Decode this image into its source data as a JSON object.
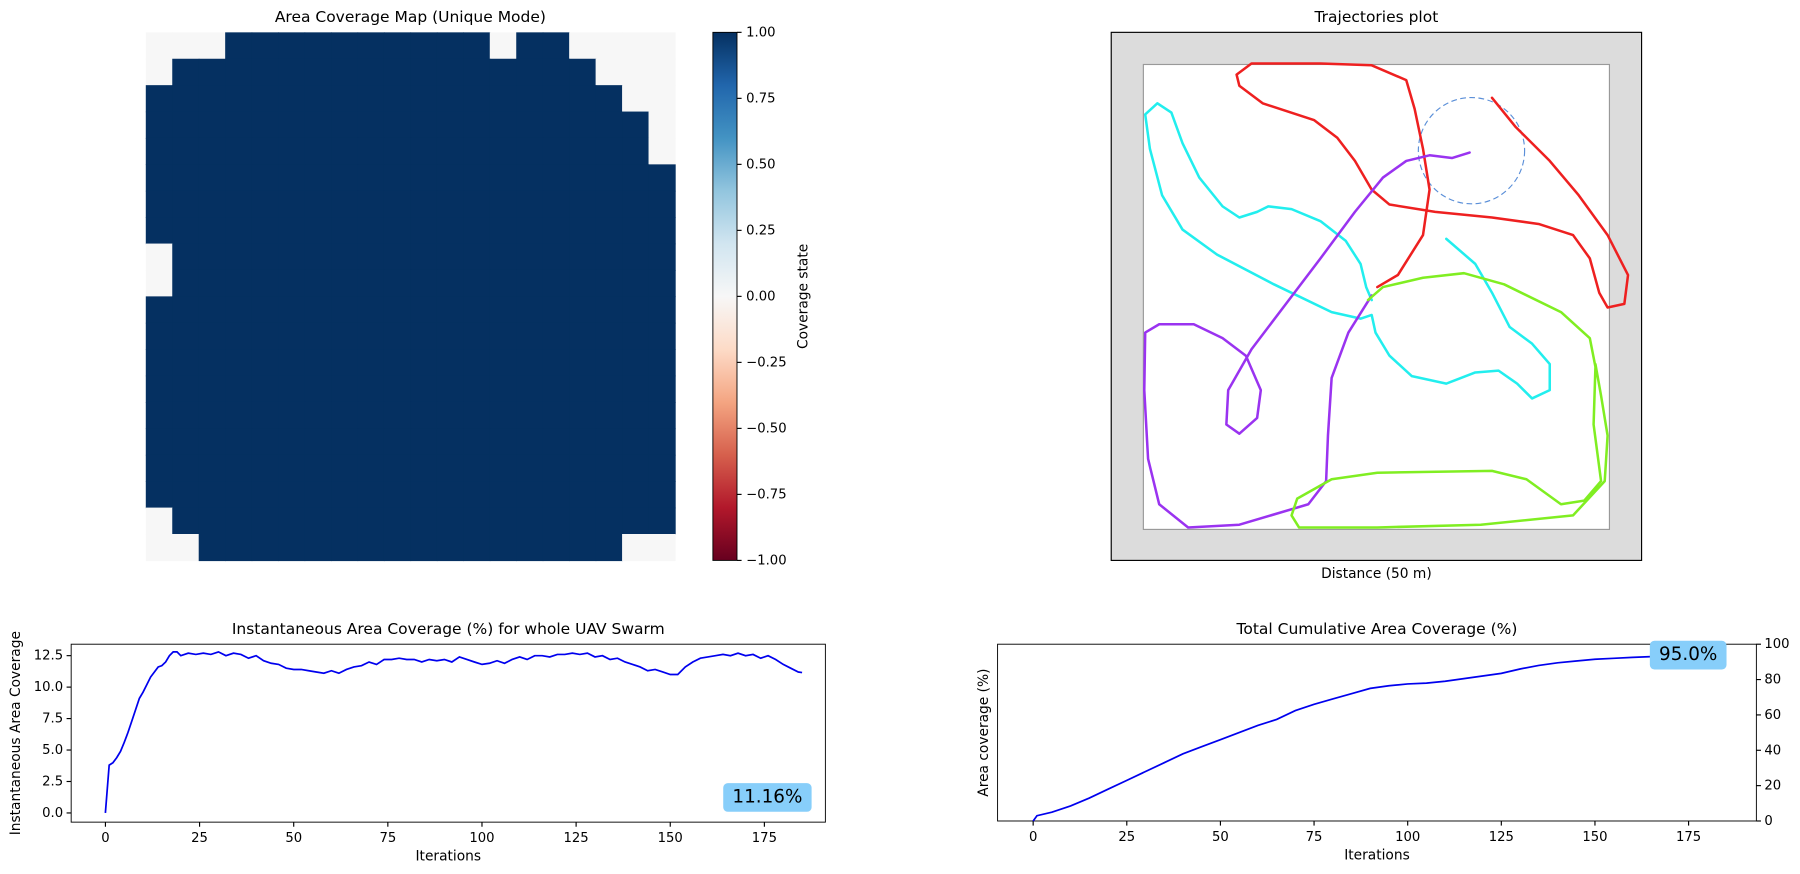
{
  "chart_data": [
    {
      "type": "heatmap",
      "title": "Area Coverage Map (Unique Mode)",
      "values": [
        [
          0,
          0,
          0,
          1,
          1,
          1,
          1,
          1,
          1,
          1,
          1,
          1,
          1,
          0,
          1,
          1,
          0,
          0,
          0,
          0
        ],
        [
          0,
          1,
          1,
          1,
          1,
          1,
          1,
          1,
          1,
          1,
          1,
          1,
          1,
          1,
          1,
          1,
          1,
          0,
          0,
          0
        ],
        [
          1,
          1,
          1,
          1,
          1,
          1,
          1,
          1,
          1,
          1,
          1,
          1,
          1,
          1,
          1,
          1,
          1,
          1,
          0,
          0
        ],
        [
          1,
          1,
          1,
          1,
          1,
          1,
          1,
          1,
          1,
          1,
          1,
          1,
          1,
          1,
          1,
          1,
          1,
          1,
          1,
          0
        ],
        [
          1,
          1,
          1,
          1,
          1,
          1,
          1,
          1,
          1,
          1,
          1,
          1,
          1,
          1,
          1,
          1,
          1,
          1,
          1,
          0
        ],
        [
          1,
          1,
          1,
          1,
          1,
          1,
          1,
          1,
          1,
          1,
          1,
          1,
          1,
          1,
          1,
          1,
          1,
          1,
          1,
          1
        ],
        [
          1,
          1,
          1,
          1,
          1,
          1,
          1,
          1,
          1,
          1,
          1,
          1,
          1,
          1,
          1,
          1,
          1,
          1,
          1,
          1
        ],
        [
          1,
          1,
          1,
          1,
          1,
          1,
          1,
          1,
          1,
          1,
          1,
          1,
          1,
          1,
          1,
          1,
          1,
          1,
          1,
          1
        ],
        [
          0,
          1,
          1,
          1,
          1,
          1,
          1,
          1,
          1,
          1,
          1,
          1,
          1,
          1,
          1,
          1,
          1,
          1,
          1,
          1
        ],
        [
          0,
          1,
          1,
          1,
          1,
          1,
          1,
          1,
          1,
          1,
          1,
          1,
          1,
          1,
          1,
          1,
          1,
          1,
          1,
          1
        ],
        [
          1,
          1,
          1,
          1,
          1,
          1,
          1,
          1,
          1,
          1,
          1,
          1,
          1,
          1,
          1,
          1,
          1,
          1,
          1,
          1
        ],
        [
          1,
          1,
          1,
          1,
          1,
          1,
          1,
          1,
          1,
          1,
          1,
          1,
          1,
          1,
          1,
          1,
          1,
          1,
          1,
          1
        ],
        [
          1,
          1,
          1,
          1,
          1,
          1,
          1,
          1,
          1,
          1,
          1,
          1,
          1,
          1,
          1,
          1,
          1,
          1,
          1,
          1
        ],
        [
          1,
          1,
          1,
          1,
          1,
          1,
          1,
          1,
          1,
          1,
          1,
          1,
          1,
          1,
          1,
          1,
          1,
          1,
          1,
          1
        ],
        [
          1,
          1,
          1,
          1,
          1,
          1,
          1,
          1,
          1,
          1,
          1,
          1,
          1,
          1,
          1,
          1,
          1,
          1,
          1,
          1
        ],
        [
          1,
          1,
          1,
          1,
          1,
          1,
          1,
          1,
          1,
          1,
          1,
          1,
          1,
          1,
          1,
          1,
          1,
          1,
          1,
          1
        ],
        [
          1,
          1,
          1,
          1,
          1,
          1,
          1,
          1,
          1,
          1,
          1,
          1,
          1,
          1,
          1,
          1,
          1,
          1,
          1,
          1
        ],
        [
          1,
          1,
          1,
          1,
          1,
          1,
          1,
          1,
          1,
          1,
          1,
          1,
          1,
          1,
          1,
          1,
          1,
          1,
          1,
          1
        ],
        [
          0,
          1,
          1,
          1,
          1,
          1,
          1,
          1,
          1,
          1,
          1,
          1,
          1,
          1,
          1,
          1,
          1,
          1,
          1,
          1
        ],
        [
          0,
          0,
          1,
          1,
          1,
          1,
          1,
          1,
          1,
          1,
          1,
          1,
          1,
          1,
          1,
          1,
          1,
          1,
          0,
          0
        ]
      ],
      "clim": [
        -1,
        1
      ],
      "colormap": "RdBu",
      "colorbar_label": "Coverage state",
      "colorbar_ticks": [
        {
          "value": 1,
          "label": "1.00"
        },
        0.75,
        {
          "value": 0.5,
          "label": "0.50"
        },
        0.25,
        {
          "value": 0,
          "label": "0.00"
        },
        {
          "value": -0.25,
          "label": "−0.25"
        },
        {
          "value": -0.5,
          "label": "−0.50"
        },
        {
          "value": -0.75,
          "label": "−0.75"
        },
        {
          "value": -1,
          "label": "−1.00"
        }
      ]
    },
    {
      "type": "trajectories",
      "title": "Trajectories plot",
      "x_label": "Distance  (50 m)",
      "xlim": [
        -3.45,
        53.45
      ],
      "ylim": [
        -3.45,
        53.45
      ],
      "sensing_circle": {
        "x": 35.2,
        "y": 40.7,
        "r": 5.7,
        "color": "#5b8fd8"
      },
      "series": [
        {
          "color": "#ee2020",
          "x": [
            25.1,
            27.3,
            30.0,
            30.7,
            30.0,
            29.1,
            28.2,
            24.5,
            19.0,
            11.6,
            10.0,
            10.3,
            12.8,
            18.3,
            20.8,
            22.7,
            24.5,
            26.4,
            31.3,
            37.4,
            42.4,
            46.1,
            47.9,
            48.9,
            49.8,
            51.6,
            52.0,
            49.8,
            46.7,
            43.6,
            39.9,
            37.4
          ],
          "y": [
            26.0,
            27.3,
            31.6,
            36.5,
            40.9,
            45.2,
            48.3,
            49.9,
            50.1,
            50.1,
            48.9,
            47.7,
            45.8,
            44.0,
            42.1,
            39.6,
            36.5,
            34.9,
            34.1,
            33.5,
            32.8,
            31.6,
            29.1,
            25.4,
            23.8,
            24.2,
            27.3,
            31.6,
            35.9,
            39.6,
            43.3,
            46.4
          ]
        },
        {
          "color": "#22eeee",
          "x": [
            32.5,
            35.6,
            37.4,
            39.3,
            41.7,
            43.6,
            43.6,
            41.7,
            40.1,
            38.1,
            35.6,
            32.5,
            28.8,
            26.4,
            24.9,
            24.5,
            23.3,
            20.2,
            14.0,
            7.9,
            4.2,
            2.0,
            0.7,
            0.2,
            1.5,
            3.0,
            4.2,
            6.0,
            8.5,
            10.3,
            12.2,
            13.4,
            15.9,
            19.0,
            21.7,
            23.3,
            23.9,
            24.5
          ],
          "y": [
            31.2,
            28.5,
            25.4,
            21.7,
            19.9,
            17.7,
            14.9,
            14.0,
            15.6,
            17.0,
            16.8,
            15.6,
            16.4,
            18.6,
            21.1,
            23.0,
            22.6,
            23.3,
            26.3,
            29.5,
            32.2,
            35.9,
            40.9,
            44.6,
            45.8,
            44.8,
            41.5,
            37.8,
            34.7,
            33.5,
            34.1,
            34.7,
            34.4,
            33.1,
            31.0,
            28.5,
            26.0,
            24.6
          ]
        },
        {
          "color": "#9a33f0",
          "x": [
            35.0,
            33.1,
            30.7,
            28.2,
            25.7,
            22.7,
            19.0,
            15.3,
            11.6,
            9.1,
            8.9,
            10.3,
            12.2,
            12.6,
            11.0,
            8.5,
            5.4,
            1.7,
            0.2,
            0.1,
            0.5,
            1.7,
            4.8,
            10.3,
            17.7,
            19.6,
            19.8,
            20.2,
            22.0,
            24.5
          ],
          "y": [
            40.5,
            39.9,
            40.2,
            39.6,
            37.8,
            34.1,
            29.1,
            24.2,
            19.3,
            14.9,
            11.2,
            10.2,
            11.9,
            14.9,
            18.6,
            20.5,
            22.0,
            22.0,
            21.1,
            14.9,
            7.5,
            2.6,
            0.1,
            0.4,
            2.6,
            5.1,
            10.0,
            16.2,
            21.1,
            25.1
          ]
        },
        {
          "color": "#80ee22",
          "x": [
            24.1,
            25.7,
            30.0,
            34.4,
            38.7,
            44.8,
            47.9,
            48.5,
            48.3,
            49.1,
            47.3,
            44.8,
            41.1,
            37.4,
            25.1,
            20.2,
            16.5,
            15.9,
            16.7,
            25.1,
            36.2,
            46.1,
            49.5,
            49.8,
            49.1,
            48.5
          ],
          "y": [
            24.6,
            26.0,
            27.0,
            27.5,
            26.3,
            23.3,
            20.5,
            17.4,
            11.2,
            5.1,
            3.0,
            2.6,
            5.3,
            6.2,
            6.0,
            5.3,
            3.2,
            1.4,
            0.1,
            0.1,
            0.4,
            1.4,
            5.1,
            10.0,
            14.3,
            17.7
          ]
        }
      ]
    },
    {
      "type": "line",
      "title": "Instantaneous Area Coverage (%) for whole UAV Swarm",
      "x_label": "Iterations",
      "y_label": "Instantaneous Area Coverage",
      "color": "#0000ee",
      "ytick_side": "left",
      "annotation": "11.16%",
      "annotation_loc": "lower right",
      "annotation_color": "#87cefa",
      "xlim": [
        -9.1,
        191.2
      ],
      "ylim": [
        -0.73,
        13.41
      ],
      "xticks": [
        0,
        25,
        50,
        75,
        100,
        125,
        150,
        175
      ],
      "yticks": [
        {
          "value": 0,
          "label": "0.0"
        },
        2.5,
        {
          "value": 5,
          "label": "5.0"
        },
        7.5,
        {
          "value": 10,
          "label": "10.0"
        },
        12.5
      ],
      "x": [
        0,
        1,
        2,
        3,
        4,
        5,
        6,
        7,
        8,
        9,
        10,
        11,
        12,
        13,
        14,
        15,
        16,
        17,
        18,
        19,
        20,
        22,
        24,
        26,
        28,
        30,
        32,
        34,
        36,
        38,
        40,
        42,
        44,
        46,
        48,
        50,
        52,
        54,
        56,
        58,
        60,
        62,
        64,
        66,
        68,
        70,
        72,
        74,
        76,
        78,
        80,
        82,
        84,
        86,
        88,
        90,
        92,
        94,
        96,
        98,
        100,
        102,
        104,
        106,
        108,
        110,
        112,
        114,
        116,
        118,
        120,
        122,
        124,
        126,
        128,
        130,
        132,
        134,
        136,
        138,
        140,
        142,
        144,
        146,
        148,
        150,
        152,
        154,
        156,
        158,
        160,
        162,
        164,
        166,
        168,
        170,
        172,
        174,
        176,
        178,
        180,
        182,
        184,
        185
      ],
      "values": [
        0,
        3.8,
        4.0,
        4.4,
        4.9,
        5.6,
        6.4,
        7.3,
        8.2,
        9.1,
        9.6,
        10.2,
        10.8,
        11.2,
        11.6,
        11.7,
        12.0,
        12.5,
        12.8,
        12.8,
        12.5,
        12.7,
        12.6,
        12.7,
        12.6,
        12.8,
        12.5,
        12.7,
        12.6,
        12.3,
        12.5,
        12.1,
        11.9,
        11.8,
        11.5,
        11.4,
        11.4,
        11.3,
        11.2,
        11.1,
        11.3,
        11.1,
        11.4,
        11.6,
        11.7,
        12.0,
        11.8,
        12.2,
        12.2,
        12.3,
        12.2,
        12.2,
        12.0,
        12.2,
        12.1,
        12.2,
        12.0,
        12.4,
        12.2,
        12.0,
        11.8,
        11.9,
        12.1,
        11.9,
        12.2,
        12.4,
        12.2,
        12.5,
        12.5,
        12.4,
        12.6,
        12.6,
        12.7,
        12.6,
        12.7,
        12.4,
        12.5,
        12.2,
        12.3,
        12.0,
        11.8,
        11.6,
        11.3,
        11.4,
        11.2,
        11.0,
        11.0,
        11.6,
        12.0,
        12.3,
        12.4,
        12.5,
        12.6,
        12.5,
        12.7,
        12.5,
        12.6,
        12.3,
        12.5,
        12.2,
        11.8,
        11.5,
        11.2,
        11.16
      ]
    },
    {
      "type": "line",
      "title": "Total Cumulative Area Coverage (%)",
      "x_label": "Iterations",
      "y_label": "Area coverage (%)",
      "color": "#0000ee",
      "ytick_side": "right",
      "annotation": "95.0%",
      "annotation_loc": "upper right",
      "annotation_color": "#87cefa",
      "xlim": [
        -9.5,
        193.1
      ],
      "ylim": [
        0,
        100
      ],
      "xticks": [
        0,
        25,
        50,
        75,
        100,
        125,
        150,
        175
      ],
      "yticks": [
        0,
        20,
        40,
        60,
        80,
        100
      ],
      "x": [
        0,
        1,
        5,
        10,
        15,
        20,
        25,
        30,
        35,
        40,
        45,
        50,
        55,
        60,
        65,
        70,
        75,
        80,
        85,
        90,
        95,
        100,
        105,
        110,
        115,
        120,
        125,
        130,
        135,
        140,
        145,
        150,
        155,
        160,
        165
      ],
      "values": [
        0,
        3,
        5,
        8.5,
        13,
        18,
        23,
        28,
        33,
        38,
        42,
        46,
        50,
        54,
        57.5,
        62.5,
        66,
        69,
        72,
        75,
        76.5,
        77.5,
        78,
        79,
        80.5,
        82,
        83.5,
        86,
        88,
        89.5,
        90.5,
        91.5,
        92,
        92.5,
        93
      ]
    }
  ]
}
